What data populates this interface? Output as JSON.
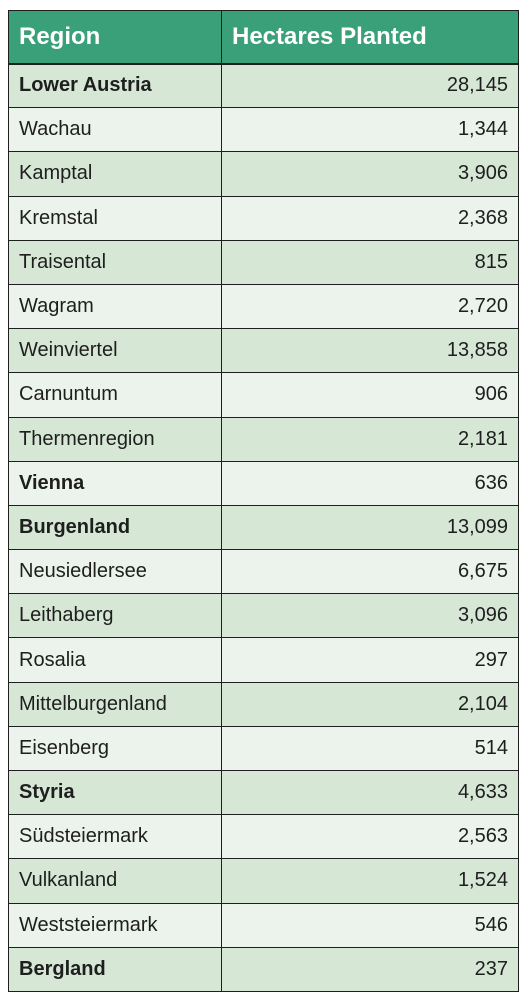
{
  "table": {
    "headers": [
      "Region",
      "Hectares Planted"
    ],
    "rows": [
      {
        "region": "Lower Austria",
        "hectares": "28,145",
        "bold": true
      },
      {
        "region": "Wachau",
        "hectares": "1,344",
        "bold": false
      },
      {
        "region": "Kamptal",
        "hectares": "3,906",
        "bold": false
      },
      {
        "region": "Kremstal",
        "hectares": "2,368",
        "bold": false
      },
      {
        "region": "Traisental",
        "hectares": "815",
        "bold": false
      },
      {
        "region": "Wagram",
        "hectares": "2,720",
        "bold": false
      },
      {
        "region": "Weinviertel",
        "hectares": "13,858",
        "bold": false
      },
      {
        "region": "Carnuntum",
        "hectares": "906",
        "bold": false
      },
      {
        "region": "Thermenregion",
        "hectares": "2,181",
        "bold": false
      },
      {
        "region": "Vienna",
        "hectares": "636",
        "bold": true
      },
      {
        "region": "Burgenland",
        "hectares": "13,099",
        "bold": true
      },
      {
        "region": "Neusiedlersee",
        "hectares": "6,675",
        "bold": false
      },
      {
        "region": "Leithaberg",
        "hectares": "3,096",
        "bold": false
      },
      {
        "region": "Rosalia",
        "hectares": "297",
        "bold": false
      },
      {
        "region": "Mittelburgenland",
        "hectares": "2,104",
        "bold": false
      },
      {
        "region": "Eisenberg",
        "hectares": "514",
        "bold": false
      },
      {
        "region": "Styria",
        "hectares": "4,633",
        "bold": true
      },
      {
        "region": "Südsteiermark",
        "hectares": "2,563",
        "bold": false
      },
      {
        "region": "Vulkanland",
        "hectares": "1,524",
        "bold": false
      },
      {
        "region": "Weststeiermark",
        "hectares": "546",
        "bold": false
      },
      {
        "region": "Bergland",
        "hectares": "237",
        "bold": true
      }
    ]
  },
  "colors": {
    "header_bg": "#3aa07a",
    "header_text": "#ffffff",
    "row_dark": "#d6e7d6",
    "row_light": "#ebf3ec",
    "border": "#1e1e1e"
  }
}
